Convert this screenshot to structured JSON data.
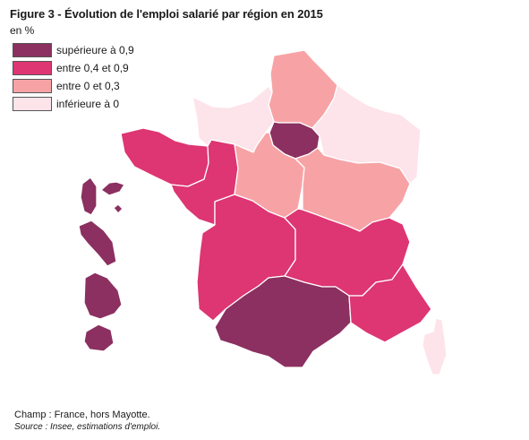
{
  "title": "Figure 3 - Évolution de l'emploi salarié par région en 2015",
  "unit": "en %",
  "legend": {
    "items": [
      {
        "label": "supérieure à 0,9",
        "color": "#8b3060"
      },
      {
        "label": "entre 0,4 et 0,9",
        "color": "#de3573"
      },
      {
        "label": "entre 0 et 0,3",
        "color": "#f7a3a6"
      },
      {
        "label": "inférieure à 0",
        "color": "#fde3ea"
      }
    ]
  },
  "footer": {
    "champ": "Champ : France, hors Mayotte.",
    "source": "Source : Insee, estimations d'emploi."
  }
}
